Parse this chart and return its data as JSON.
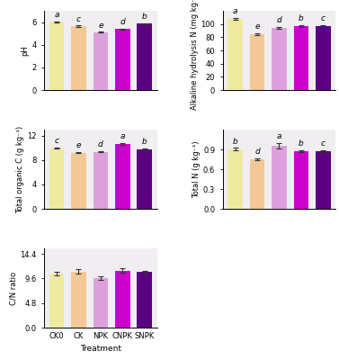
{
  "categories": [
    "CK0",
    "CK",
    "NPK",
    "CNPK",
    "SNPK"
  ],
  "bar_colors": [
    "#EEEAA0",
    "#F2C896",
    "#DDA0DD",
    "#CC00CC",
    "#5B0080"
  ],
  "subplot_facecolor": "#F0EEF0",
  "pH": {
    "values": [
      6.02,
      5.65,
      5.1,
      5.38,
      5.88
    ],
    "errors": [
      0.05,
      0.05,
      0.04,
      0.04,
      0.04
    ],
    "letters": [
      "a",
      "c",
      "e",
      "d",
      "b"
    ],
    "ylim": [
      0,
      7.0
    ],
    "yticks": [
      0,
      2,
      4,
      6
    ],
    "ylabel": "pH"
  },
  "alkaline_N": {
    "values": [
      108,
      85,
      94,
      97,
      97
    ],
    "errors": [
      1.5,
      1.2,
      1.5,
      1.5,
      1.5
    ],
    "letters": [
      "a",
      "e",
      "d",
      "b",
      "c"
    ],
    "ylim": [
      0,
      120
    ],
    "yticks": [
      0,
      20,
      40,
      60,
      80,
      100
    ],
    "ylabel": "Alkaline hydrolysis N (mg kg⁻¹)"
  },
  "total_C": {
    "values": [
      9.95,
      9.2,
      9.35,
      10.65,
      9.8
    ],
    "errors": [
      0.1,
      0.1,
      0.1,
      0.12,
      0.1
    ],
    "letters": [
      "c",
      "e",
      "d",
      "a",
      "b"
    ],
    "ylim": [
      0,
      13
    ],
    "yticks": [
      0,
      4,
      8,
      12
    ],
    "ylabel": "Total organic C (g kg⁻¹)"
  },
  "total_N": {
    "values": [
      0.905,
      0.755,
      0.955,
      0.875,
      0.875
    ],
    "errors": [
      0.018,
      0.012,
      0.045,
      0.018,
      0.018
    ],
    "letters": [
      "b",
      "d",
      "a",
      "b",
      "c"
    ],
    "ylim": [
      0.0,
      1.2
    ],
    "yticks": [
      0.0,
      0.3,
      0.6,
      0.9
    ],
    "ylabel": "Total N (g kg⁻¹)"
  },
  "cn_ratio": {
    "values": [
      10.65,
      11.0,
      9.65,
      11.15,
      10.85
    ],
    "errors": [
      0.35,
      0.45,
      0.32,
      0.45,
      0.3
    ],
    "letters": [
      "",
      "",
      "",
      "",
      ""
    ],
    "ylim": [
      0.0,
      15.5
    ],
    "yticks": [
      0.0,
      4.8,
      9.6,
      14.4
    ],
    "ylabel": "C/N ratio"
  },
  "xlabel": "Treatment",
  "fontsize": 6.5,
  "letter_fontsize": 6.5
}
